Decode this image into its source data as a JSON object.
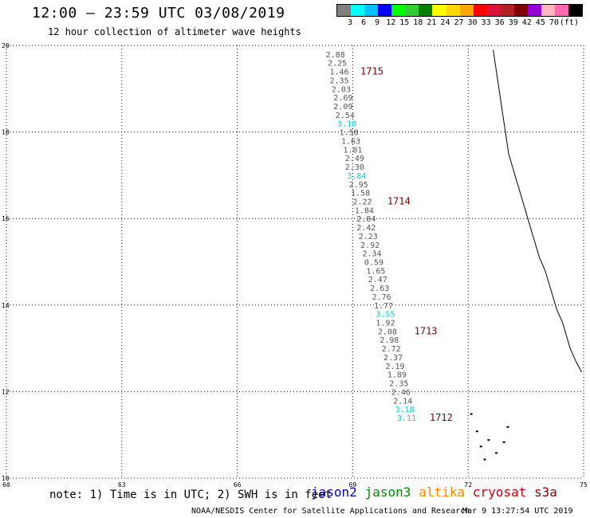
{
  "header": {
    "title": "12:00 – 23:59 UTC 03/08/2019",
    "subtitle": "12 hour collection of altimeter wave heights"
  },
  "scale": {
    "colors": [
      "#808080",
      "#00ffff",
      "#00bfff",
      "#0000ff",
      "#00ff00",
      "#32cd32",
      "#008000",
      "#ffff00",
      "#ffd700",
      "#ffa500",
      "#ff0000",
      "#dc143c",
      "#b22222",
      "#800000",
      "#9400d3",
      "#ffb6c1",
      "#ff69b4",
      "#000000"
    ],
    "labels": [
      "3",
      "6",
      "9",
      "12",
      "15",
      "18",
      "21",
      "24",
      "27",
      "30",
      "33",
      "36",
      "39",
      "42",
      "45",
      "70",
      "(ft)"
    ]
  },
  "axes": {
    "lat_ticks": [
      "20",
      "18",
      "16",
      "14",
      "12",
      "10"
    ],
    "lon_ticks": [
      "60",
      "63",
      "66",
      "69",
      "72",
      "75"
    ]
  },
  "track": {
    "points": [
      {
        "lat": 19.8,
        "lon": 68.8,
        "swh": "2.88"
      },
      {
        "lat": 19.6,
        "lon": 68.85,
        "swh": "2.25"
      },
      {
        "lat": 19.4,
        "lon": 68.9,
        "swh": "1.46"
      },
      {
        "lat": 19.2,
        "lon": 68.9,
        "swh": "2.35"
      },
      {
        "lat": 19.0,
        "lon": 68.95,
        "swh": "2.03"
      },
      {
        "lat": 18.8,
        "lon": 69.0,
        "swh": "2.69"
      },
      {
        "lat": 18.6,
        "lon": 69.0,
        "swh": "2.09"
      },
      {
        "lat": 18.4,
        "lon": 69.05,
        "swh": "2.54"
      },
      {
        "lat": 18.2,
        "lon": 69.1,
        "swh": "3.10",
        "color": "#00d0d0"
      },
      {
        "lat": 18.0,
        "lon": 69.15,
        "swh": "1.58"
      },
      {
        "lat": 17.8,
        "lon": 69.2,
        "swh": "1.63"
      },
      {
        "lat": 17.6,
        "lon": 69.25,
        "swh": "1.81"
      },
      {
        "lat": 17.4,
        "lon": 69.3,
        "swh": "2.49"
      },
      {
        "lat": 17.2,
        "lon": 69.3,
        "swh": "2.30"
      },
      {
        "lat": 17.0,
        "lon": 69.35,
        "swh": "3.84",
        "color": "#00d0d0"
      },
      {
        "lat": 16.8,
        "lon": 69.4,
        "swh": "2.95"
      },
      {
        "lat": 16.6,
        "lon": 69.45,
        "swh": "1.58"
      },
      {
        "lat": 16.4,
        "lon": 69.5,
        "swh": "2.22"
      },
      {
        "lat": 16.2,
        "lon": 69.55,
        "swh": "1.84"
      },
      {
        "lat": 16.0,
        "lon": 69.6,
        "swh": "2.84"
      },
      {
        "lat": 15.8,
        "lon": 69.6,
        "swh": "2.42"
      },
      {
        "lat": 15.6,
        "lon": 69.65,
        "swh": "2.23"
      },
      {
        "lat": 15.4,
        "lon": 69.7,
        "swh": "2.92"
      },
      {
        "lat": 15.2,
        "lon": 69.75,
        "swh": "2.34"
      },
      {
        "lat": 15.0,
        "lon": 69.8,
        "swh": "0.59"
      },
      {
        "lat": 14.8,
        "lon": 69.85,
        "swh": "1.65"
      },
      {
        "lat": 14.6,
        "lon": 69.9,
        "swh": "2.47"
      },
      {
        "lat": 14.4,
        "lon": 69.95,
        "swh": "2.63"
      },
      {
        "lat": 14.2,
        "lon": 70.0,
        "swh": "2.76"
      },
      {
        "lat": 14.0,
        "lon": 70.05,
        "swh": "1.77"
      },
      {
        "lat": 13.8,
        "lon": 70.1,
        "swh": "3.55",
        "color": "#00d0d0"
      },
      {
        "lat": 13.6,
        "lon": 70.1,
        "swh": "1.92"
      },
      {
        "lat": 13.4,
        "lon": 70.15,
        "swh": "2.08"
      },
      {
        "lat": 13.2,
        "lon": 70.2,
        "swh": "2.98"
      },
      {
        "lat": 13.0,
        "lon": 70.25,
        "swh": "2.72"
      },
      {
        "lat": 12.8,
        "lon": 70.3,
        "swh": "2.37"
      },
      {
        "lat": 12.6,
        "lon": 70.35,
        "swh": "2.19"
      },
      {
        "lat": 12.4,
        "lon": 70.4,
        "swh": "1.89"
      },
      {
        "lat": 12.2,
        "lon": 70.45,
        "swh": "2.35"
      },
      {
        "lat": 12.0,
        "lon": 70.5,
        "swh": "2.46"
      },
      {
        "lat": 11.8,
        "lon": 70.55,
        "swh": "2.14"
      },
      {
        "lat": 11.6,
        "lon": 70.6,
        "swh": "3.18",
        "color": "#00d0d0"
      },
      {
        "lat": 11.4,
        "lon": 70.65,
        "swh": "3.11",
        "color": "#00d0d0"
      }
    ],
    "time_labels": [
      {
        "lat": 19.4,
        "lon": 69.2,
        "text": "1715"
      },
      {
        "lat": 16.4,
        "lon": 69.9,
        "text": "1714"
      },
      {
        "lat": 13.4,
        "lon": 70.6,
        "text": "1713"
      },
      {
        "lat": 11.4,
        "lon": 71.0,
        "text": "1712"
      }
    ]
  },
  "footer": {
    "note": "note: 1) Time is in UTC; 2) SWH is in feet",
    "legend": [
      {
        "label": "jason2",
        "color": "#0000cc"
      },
      {
        "label": "jason3",
        "color": "#008800"
      },
      {
        "label": "altika",
        "color": "#ff8800"
      },
      {
        "label": "cryosat",
        "color": "#cc0000"
      },
      {
        "label": "s3a",
        "color": "#880000"
      }
    ],
    "credit": "NOAA/NESDIS Center for Satellite Applications and Research",
    "date": "Mar  9 13:27:54 UTC 2019"
  }
}
